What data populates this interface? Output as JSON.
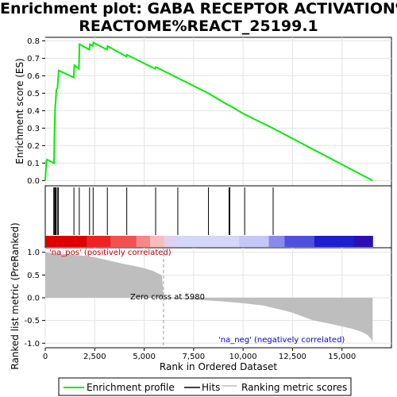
{
  "chart_data": {
    "type": "line",
    "title_lines": [
      "Enrichment plot: GABA RECEPTOR ACTIVATION%",
      "REACTOME%REACT_25199.1"
    ],
    "enrichment_profile": {
      "ylabel": "Enrichment score (ES)",
      "ylim": [
        -0.03,
        0.82
      ],
      "y_ticks": [
        0.0,
        0.1,
        0.2,
        0.3,
        0.4,
        0.5,
        0.6,
        0.7,
        0.8
      ],
      "y_tick_labels": [
        "0.0",
        "0.1",
        "0.2",
        "0.3",
        "0.4",
        "0.5",
        "0.6",
        "0.7",
        "0.8"
      ],
      "color": "#00ee00",
      "points": [
        [
          0,
          0.0
        ],
        [
          60,
          0.11
        ],
        [
          90,
          0.12
        ],
        [
          440,
          0.1
        ],
        [
          460,
          0.25
        ],
        [
          480,
          0.33
        ],
        [
          500,
          0.42
        ],
        [
          530,
          0.46
        ],
        [
          560,
          0.52
        ],
        [
          620,
          0.53
        ],
        [
          680,
          0.63
        ],
        [
          1440,
          0.59
        ],
        [
          1470,
          0.66
        ],
        [
          1700,
          0.64
        ],
        [
          1730,
          0.78
        ],
        [
          2230,
          0.75
        ],
        [
          2260,
          0.78
        ],
        [
          2400,
          0.77
        ],
        [
          2430,
          0.79
        ],
        [
          3120,
          0.75
        ],
        [
          3150,
          0.77
        ],
        [
          4100,
          0.71
        ],
        [
          4130,
          0.72
        ],
        [
          5560,
          0.64
        ],
        [
          5590,
          0.65
        ],
        [
          8240,
          0.5
        ],
        [
          9280,
          0.43
        ],
        [
          9310,
          0.43
        ],
        [
          10060,
          0.38
        ],
        [
          11500,
          0.3
        ],
        [
          16550,
          0.0
        ]
      ]
    },
    "hits": {
      "color": "#000000",
      "positions": [
        430,
        470,
        500,
        540,
        610,
        660,
        1450,
        1720,
        2240,
        2420,
        3140,
        4120,
        5580,
        6700,
        8250,
        9290,
        9330,
        10080,
        11520
      ]
    },
    "ranked_metric": {
      "xlabel": "Rank in Ordered Dataset",
      "ylabel": "Ranked list metric (PreRanked)",
      "ylim": [
        -1.1,
        1.1
      ],
      "y_ticks": [
        -1.0,
        -0.5,
        0.0,
        0.5,
        1.0
      ],
      "y_tick_labels": [
        "-1.0",
        "-0.5",
        "0.0",
        "0.5",
        "1.0"
      ],
      "x_ticks": [
        0,
        2500,
        5000,
        7500,
        10000,
        12500,
        15000
      ],
      "x_tick_labels": [
        "0",
        "2,500",
        "5,000",
        "7,500",
        "10,000",
        "12,500",
        "15,000"
      ],
      "xlim": [
        0,
        17500
      ],
      "n_genes": 16550,
      "zero_cross": 5980,
      "zero_cross_label": "Zero cross at 5980",
      "pos_label": "'na_pos' (positively correlated)",
      "neg_label": "'na_neg' (negatively correlated)",
      "fill_color": "#bebebe",
      "curve": [
        [
          0,
          1.0
        ],
        [
          300,
          0.98
        ],
        [
          1000,
          0.96
        ],
        [
          2000,
          0.92
        ],
        [
          2500,
          0.89
        ],
        [
          3000,
          0.84
        ],
        [
          3500,
          0.79
        ],
        [
          4000,
          0.74
        ],
        [
          4500,
          0.7
        ],
        [
          5000,
          0.65
        ],
        [
          5500,
          0.58
        ],
        [
          5900,
          0.49
        ],
        [
          5980,
          0.0
        ],
        [
          6300,
          -0.01
        ],
        [
          7500,
          -0.04
        ],
        [
          9000,
          -0.08
        ],
        [
          10000,
          -0.12
        ],
        [
          11000,
          -0.17
        ],
        [
          12000,
          -0.27
        ],
        [
          12500,
          -0.33
        ],
        [
          13000,
          -0.41
        ],
        [
          13500,
          -0.49
        ],
        [
          14000,
          -0.54
        ],
        [
          14500,
          -0.58
        ],
        [
          15000,
          -0.63
        ],
        [
          15500,
          -0.68
        ],
        [
          16000,
          -0.75
        ],
        [
          16300,
          -0.82
        ],
        [
          16500,
          -0.92
        ],
        [
          16550,
          -1.0
        ]
      ]
    },
    "color_bar": [
      [
        0,
        "#dd0000"
      ],
      [
        2100,
        "#ee2222"
      ],
      [
        3300,
        "#f45050"
      ],
      [
        4600,
        "#f68888"
      ],
      [
        5300,
        "#f9bcbc"
      ],
      [
        6000,
        "#e0d0f0"
      ],
      [
        6600,
        "#d6d6fa"
      ],
      [
        9800,
        "#c6c6f8"
      ],
      [
        11300,
        "#8a8aee"
      ],
      [
        12100,
        "#5050e0"
      ],
      [
        13600,
        "#1e1ed0"
      ],
      [
        15600,
        "#2b0fb5"
      ],
      [
        16550,
        "#2b0fb5"
      ]
    ],
    "legend": {
      "items": [
        {
          "label": "Enrichment profile",
          "color": "#00ee00",
          "kind": "line"
        },
        {
          "label": "Hits",
          "color": "#000000",
          "kind": "line"
        },
        {
          "label": "Ranking metric scores",
          "color": "#bebebe",
          "kind": "line"
        }
      ]
    }
  }
}
